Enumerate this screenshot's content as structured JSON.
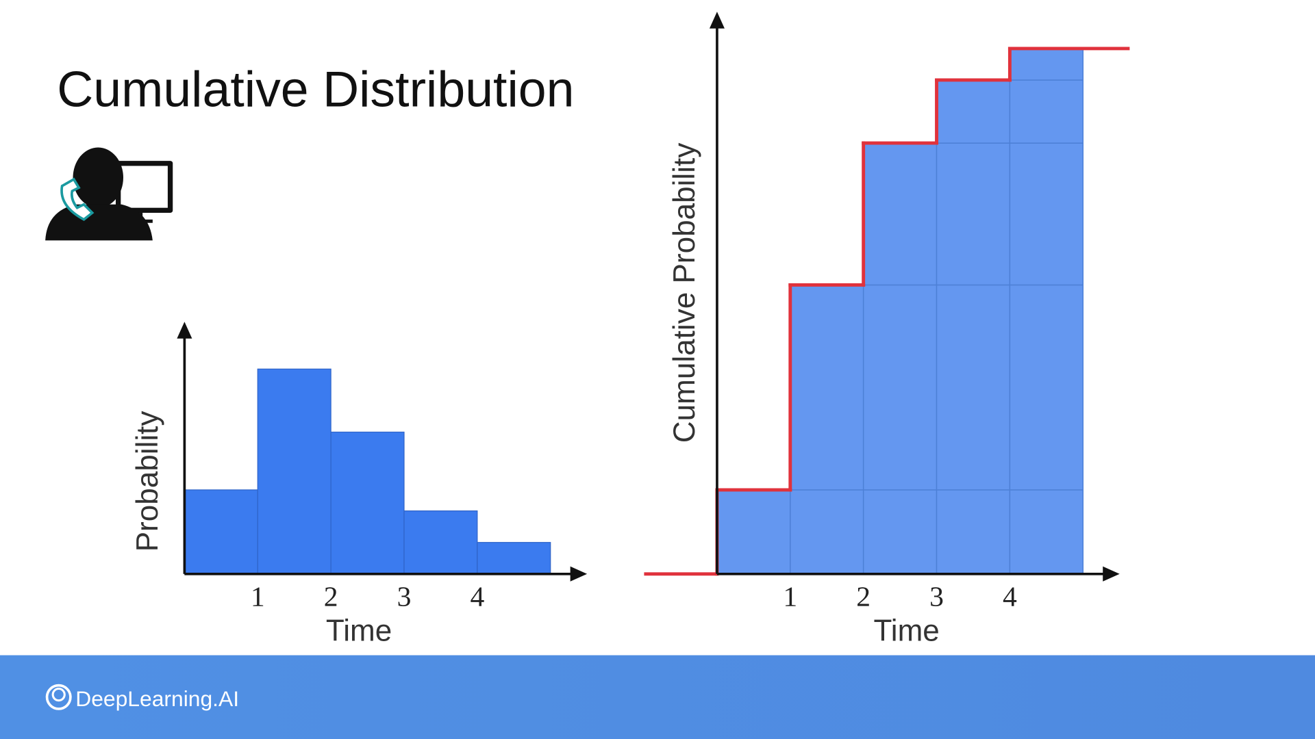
{
  "title": "Cumulative Distribution",
  "footer_brand": "DeepLearning.AI",
  "chart_data": [
    {
      "type": "histogram",
      "bins": [
        0,
        1,
        2,
        3,
        4,
        5
      ],
      "values": [
        0.16,
        0.39,
        0.27,
        0.12,
        0.06
      ],
      "color": "#3b7bef",
      "xlabel": "Time",
      "ylabel": "Probability",
      "xlim": [
        0,
        5.5
      ],
      "ylim": [
        0,
        0.48
      ],
      "xticks": [
        1,
        2,
        3,
        4
      ]
    },
    {
      "type": "step",
      "x": [
        0,
        1,
        2,
        3,
        4
      ],
      "values": [
        0.16,
        0.55,
        0.82,
        0.94,
        1.0
      ],
      "color": "#e0323c",
      "cell_color": "#6497f0",
      "xlabel": "Time",
      "ylabel": "Cumulative Probability",
      "xlim": [
        0,
        5.5
      ],
      "ylim": [
        0,
        1.07
      ],
      "xticks": [
        1,
        2,
        3,
        4
      ]
    }
  ]
}
